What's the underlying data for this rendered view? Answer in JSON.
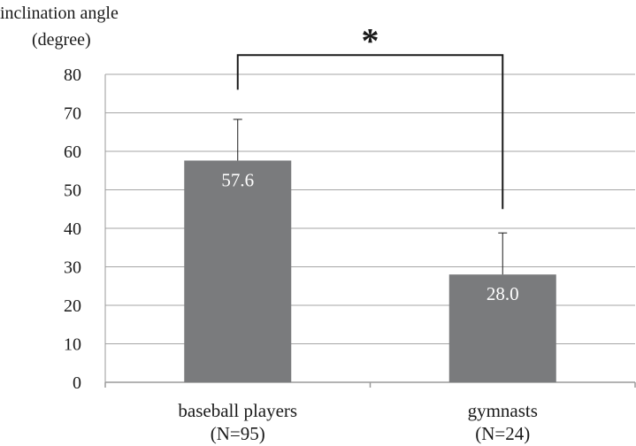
{
  "chart_data": {
    "type": "bar",
    "ylabel_line1": "inclination angle",
    "ylabel_line2": "(degree)",
    "ylim": [
      0,
      80
    ],
    "yticks": [
      "0",
      "10",
      "20",
      "30",
      "40",
      "50",
      "60",
      "70",
      "80"
    ],
    "grid": true,
    "categories": [
      {
        "line1": "baseball players",
        "line2": "(N=95)"
      },
      {
        "line1": "gymnasts",
        "line2": "(N=24)"
      }
    ],
    "values": [
      57.6,
      28.0
    ],
    "data_labels": [
      "57.6",
      "28.0"
    ],
    "error_upper": [
      68.3,
      38.8
    ],
    "significance": {
      "marker": "*",
      "left_end": 76,
      "right_end": 45,
      "top": 85
    },
    "colors": {
      "bar": "#7a7b7d",
      "grid": "#a6a6a6",
      "axis": "#9a9a9a",
      "ink": "#1a1a1a"
    }
  }
}
